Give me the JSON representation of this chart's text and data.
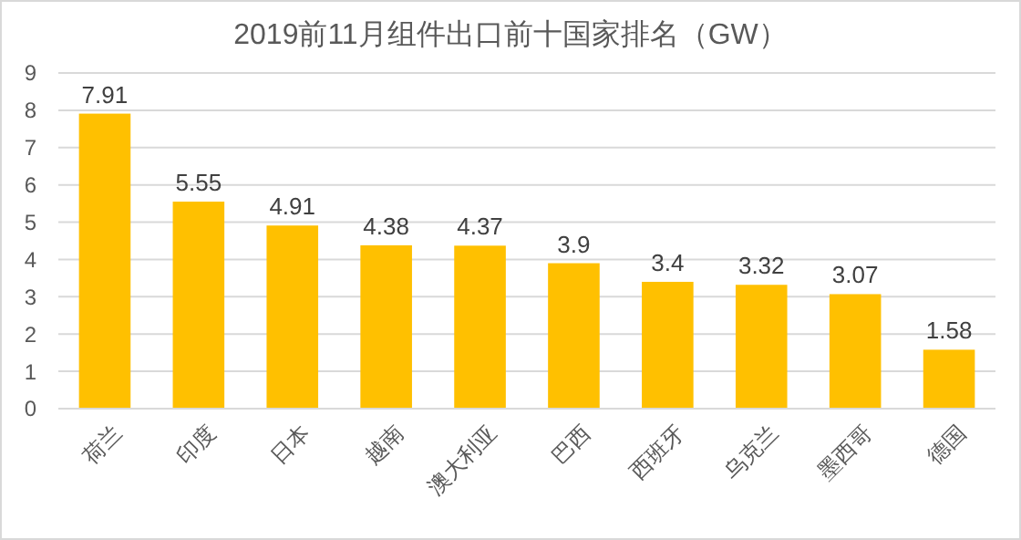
{
  "chart_data": {
    "type": "bar",
    "title": "2019前11月组件出口前十国家排名（GW）",
    "categories": [
      "荷兰",
      "印度",
      "日本",
      "越南",
      "澳大利亚",
      "巴西",
      "西班牙",
      "乌克兰",
      "墨西哥",
      "德国"
    ],
    "values": [
      7.91,
      5.55,
      4.91,
      4.38,
      4.37,
      3.9,
      3.4,
      3.32,
      3.07,
      1.58
    ],
    "color": "#ffc000",
    "ylim": [
      0,
      9
    ],
    "yticks": [
      0,
      1,
      2,
      3,
      4,
      5,
      6,
      7,
      8,
      9
    ],
    "grid": "y",
    "data_labels": true
  }
}
